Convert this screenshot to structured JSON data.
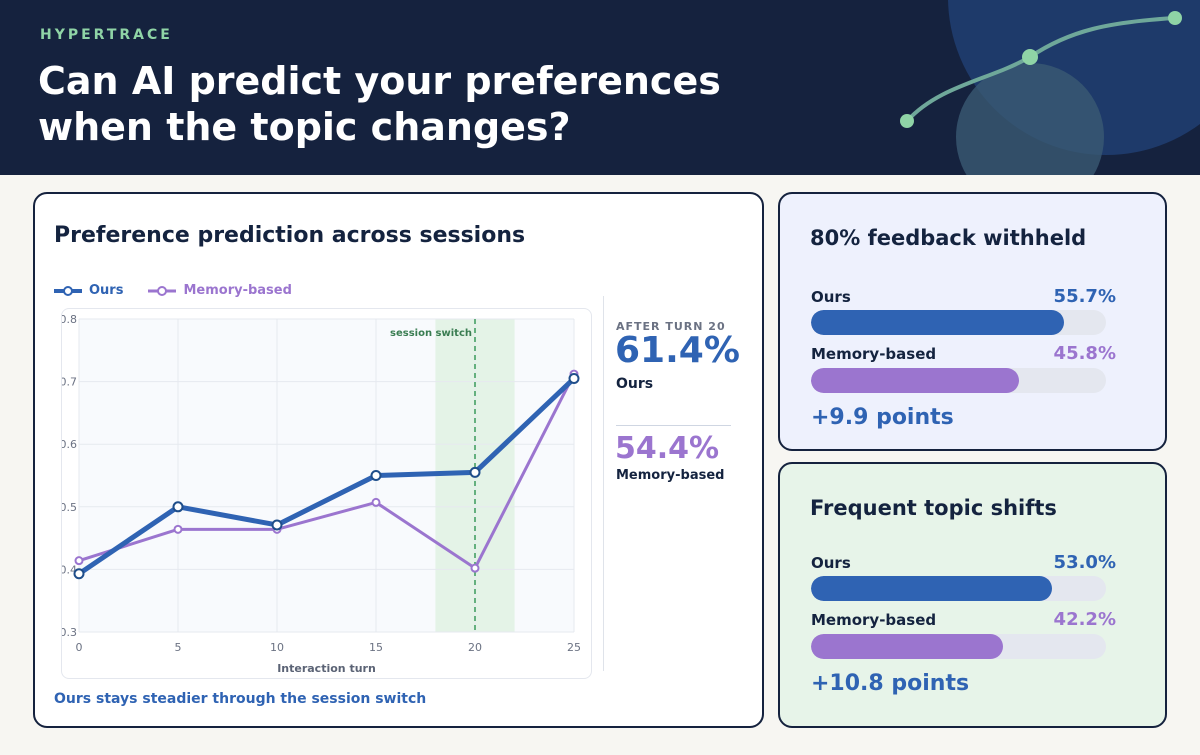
{
  "header": {
    "brand": "HYPERTRACE",
    "title": "Can AI predict your preferences when the topic changes?"
  },
  "main_chart": {
    "title": "Preference prediction across sessions",
    "caption": "Ours stays steadier through the session switch",
    "session_switch_label": "session switch",
    "callout": {
      "label": "AFTER TURN 20",
      "ours_value": "61.4%",
      "ours_label": "Ours",
      "memory_value": "54.4%",
      "memory_label": "Memory-based"
    }
  },
  "chart_data": {
    "type": "line",
    "title": "Preference prediction across sessions",
    "xlabel": "Interaction turn",
    "ylabel": "",
    "x": [
      0,
      5,
      10,
      15,
      20,
      25
    ],
    "x_ticks": [
      "0",
      "5",
      "10",
      "15",
      "20",
      "25"
    ],
    "y_ticks": [
      "0.3",
      "0.4",
      "0.5",
      "0.6",
      "0.7",
      "0.8"
    ],
    "xlim": [
      0,
      25
    ],
    "ylim": [
      0.3,
      0.8
    ],
    "grid": true,
    "legend_position": "top-left",
    "session_switch_x": 20,
    "highlight_range": [
      18,
      22
    ],
    "series": [
      {
        "name": "Ours",
        "color": "#2f63b3",
        "values": [
          0.393,
          0.5,
          0.471,
          0.55,
          0.555,
          0.705
        ]
      },
      {
        "name": "Memory-based",
        "color": "#9b75cf",
        "values": [
          0.414,
          0.464,
          0.464,
          0.507,
          0.402,
          0.712
        ]
      }
    ]
  },
  "panels": [
    {
      "title": "80% feedback withheld",
      "rows": [
        {
          "label": "Ours",
          "value_text": "55.7%",
          "value": 55.7,
          "color": "#2f63b3"
        },
        {
          "label": "Memory-based",
          "value_text": "45.8%",
          "value": 45.8,
          "color": "#9b75cf"
        }
      ],
      "delta": "+9.9 points"
    },
    {
      "title": "Frequent topic shifts",
      "rows": [
        {
          "label": "Ours",
          "value_text": "53.0%",
          "value": 53.0,
          "color": "#2f63b3"
        },
        {
          "label": "Memory-based",
          "value_text": "42.2%",
          "value": 42.2,
          "color": "#9b75cf"
        }
      ],
      "delta": "+10.8 points"
    }
  ],
  "colors": {
    "header_bg": "#15223e",
    "accent_green": "#8fd4a6",
    "ours": "#2f63b3",
    "memory": "#9b75cf"
  }
}
